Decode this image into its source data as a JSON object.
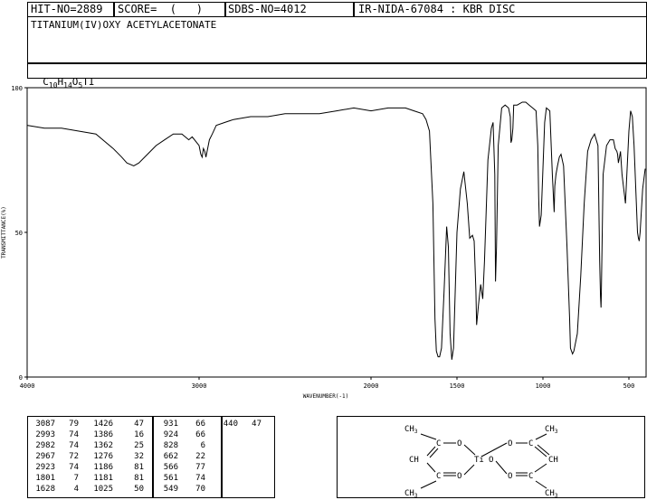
{
  "header": {
    "hit_no": "HIT-NO=2889",
    "score": "SCORE=  (   )",
    "sdbs_no": "SDBS-NO=4012",
    "ir_info": "IR-NIDA-67084 : KBR DISC",
    "compound_name": "TITANIUM(IV)OXY ACETYLACETONATE",
    "formula": {
      "C": "C",
      "c_sub": "10",
      "H": "H",
      "h_sub": "14",
      "O": "O",
      "o_sub": "5",
      "rest": "TI"
    }
  },
  "chart_data": {
    "type": "line",
    "xlabel": "WAVENUMBER(-1)",
    "ylabel": "TRANSMITTANCE(%)",
    "xlim": [
      4000,
      400
    ],
    "ylim": [
      0,
      100
    ],
    "x_ticks": [
      4000,
      3000,
      2000,
      1500,
      1000,
      500
    ],
    "y_ticks": [
      0,
      50,
      100
    ],
    "grid": false,
    "series": [
      {
        "x": [
          4000,
          3900,
          3800,
          3700,
          3600,
          3500,
          3450,
          3420,
          3380,
          3350,
          3300,
          3250,
          3200,
          3150,
          3100,
          3060,
          3040,
          3000,
          2990,
          2982,
          2975,
          2967,
          2960,
          2940,
          2923,
          2900,
          2850,
          2800,
          2700,
          2600,
          2500,
          2400,
          2300,
          2200,
          2100,
          2000,
          1900,
          1800,
          1750,
          1700,
          1680,
          1660,
          1640,
          1628,
          1620,
          1610,
          1601,
          1590,
          1575,
          1560,
          1550,
          1540,
          1530,
          1520,
          1510,
          1500,
          1480,
          1460,
          1440,
          1426,
          1410,
          1400,
          1390,
          1386,
          1375,
          1362,
          1350,
          1340,
          1320,
          1300,
          1290,
          1280,
          1276,
          1270,
          1260,
          1240,
          1220,
          1200,
          1190,
          1186,
          1181,
          1175,
          1170,
          1150,
          1120,
          1100,
          1080,
          1060,
          1040,
          1030,
          1025,
          1020,
          1010,
          990,
          980,
          960,
          945,
          935,
          931,
          924,
          915,
          905,
          895,
          880,
          860,
          845,
          840,
          828,
          820,
          800,
          780,
          760,
          740,
          720,
          700,
          680,
          670,
          665,
          662,
          660,
          650,
          630,
          610,
          590,
          580,
          570,
          566,
          561,
          555,
          549,
          540,
          520,
          500,
          490,
          480,
          470,
          460,
          450,
          445,
          440,
          435,
          420,
          405
        ],
        "y": [
          87,
          86,
          86,
          85,
          84,
          79,
          76,
          74,
          73,
          74,
          77,
          80,
          82,
          84,
          84,
          82,
          83,
          80,
          77,
          76,
          79,
          78,
          76,
          82,
          84,
          87,
          88,
          89,
          90,
          90,
          91,
          91,
          91,
          92,
          93,
          92,
          93,
          93,
          92,
          91,
          89,
          85,
          60,
          20,
          9,
          7,
          7,
          10,
          30,
          52,
          45,
          15,
          6,
          10,
          30,
          50,
          65,
          71,
          60,
          48,
          49,
          47,
          30,
          18,
          25,
          32,
          27,
          40,
          75,
          86,
          88,
          70,
          33,
          45,
          80,
          93,
          94,
          93,
          90,
          81,
          82,
          86,
          94,
          94,
          95,
          95,
          94,
          93,
          92,
          80,
          62,
          52,
          56,
          88,
          93,
          92,
          70,
          57,
          66,
          70,
          73,
          76,
          77,
          73,
          45,
          20,
          10,
          8,
          9,
          15,
          35,
          60,
          78,
          82,
          84,
          80,
          40,
          28,
          24,
          30,
          70,
          80,
          82,
          82,
          79,
          78,
          77,
          74,
          76,
          78,
          70,
          60,
          85,
          92,
          90,
          80,
          65,
          50,
          48,
          47,
          50,
          65,
          72
        ]
      }
    ]
  },
  "peak_table": [
    [
      "3087",
      "79",
      "1426",
      "47",
      "931",
      "66",
      "440",
      "47"
    ],
    [
      "2993",
      "74",
      "1386",
      "16",
      "924",
      "66",
      "",
      ""
    ],
    [
      "2982",
      "74",
      "1362",
      "25",
      "828",
      "6",
      "",
      ""
    ],
    [
      "2967",
      "72",
      "1276",
      "32",
      "662",
      "22",
      "",
      ""
    ],
    [
      "2923",
      "74",
      "1186",
      "81",
      "566",
      "77",
      "",
      ""
    ],
    [
      "1801",
      "7",
      "1181",
      "81",
      "561",
      "74",
      "",
      ""
    ],
    [
      "1628",
      "4",
      "1025",
      "50",
      "549",
      "70",
      "",
      ""
    ]
  ],
  "structure": {
    "labels": {
      "ch3": "CH",
      "three": "3",
      "c": "C",
      "o": "O",
      "ch": "CH",
      "ti": "Ti"
    }
  }
}
